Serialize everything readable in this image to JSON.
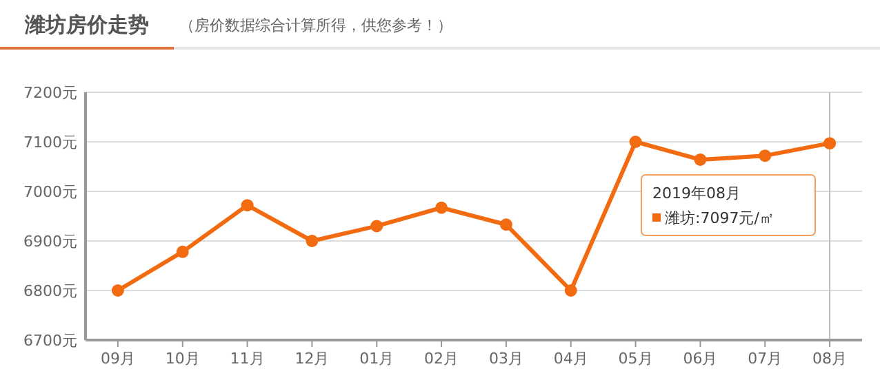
{
  "chart_data": {
    "type": "line",
    "title": "潍坊房价走势",
    "subtitle": "（房价数据综合计算所得，供您参考！）",
    "categories": [
      "09月",
      "10月",
      "11月",
      "12月",
      "01月",
      "02月",
      "03月",
      "04月",
      "05月",
      "06月",
      "07月",
      "08月"
    ],
    "series": [
      {
        "name": "潍坊",
        "color": "#f26b11",
        "values": [
          6800,
          6878,
          6972,
          6900,
          6930,
          6967,
          6933,
          6800,
          7100,
          7064,
          7072,
          7097
        ]
      }
    ],
    "ylim": [
      6700,
      7200
    ],
    "yticks": [
      {
        "value": 6700,
        "label": "6700元"
      },
      {
        "value": 6800,
        "label": "6800元"
      },
      {
        "value": 6900,
        "label": "6900元"
      },
      {
        "value": 7000,
        "label": "7000元"
      },
      {
        "value": 7100,
        "label": "7100元"
      },
      {
        "value": 7200,
        "label": "7200元"
      }
    ],
    "grid": "y",
    "marker": "circle",
    "line_style": "solid",
    "legend": "right",
    "annotations": [
      "2019年08月",
      ":7097元/㎡"
    ],
    "ref_lines": [
      {
        "axis": "x",
        "value": "08月",
        "color": "#bbbbbb"
      }
    ]
  }
}
